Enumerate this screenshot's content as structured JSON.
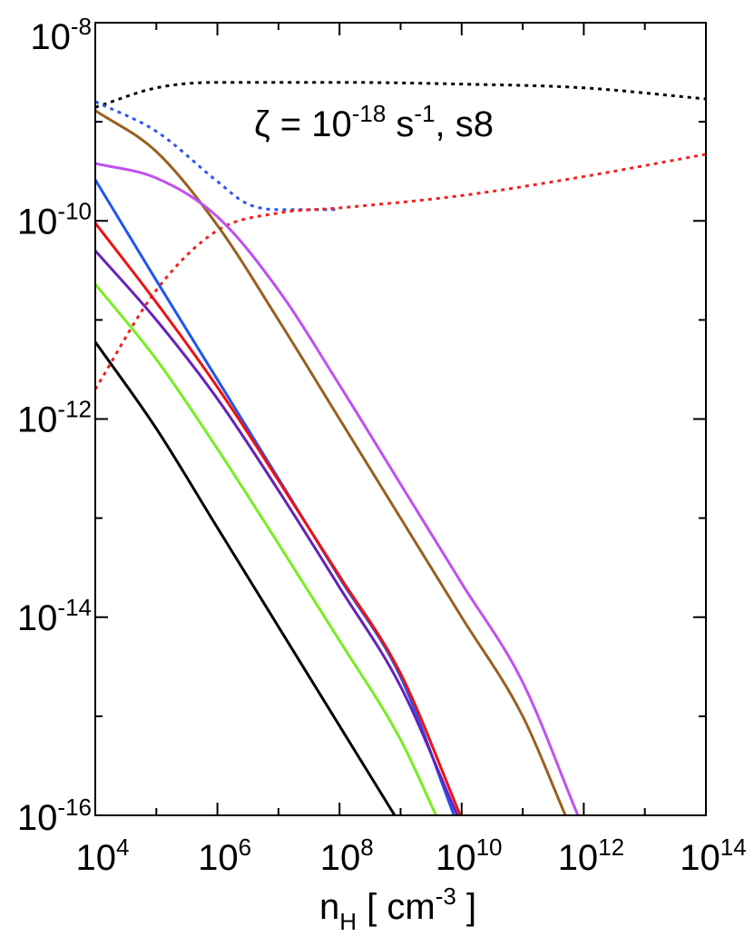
{
  "chart_data": {
    "type": "line",
    "title": "",
    "annotation": {
      "symbol": "ζ = 10",
      "exp": "-18",
      "unit": " s",
      "unit_exp": "-1",
      "suffix": ", s8"
    },
    "xlabel": {
      "main": "n",
      "sub": "H",
      "rest": " [ cm",
      "sup": "-3",
      "end": " ]"
    },
    "ylabel": "",
    "x_scale": "log",
    "y_scale": "log",
    "xlim": [
      10000,
      100000000000000
    ],
    "ylim": [
      1e-16,
      1e-08
    ],
    "grid": false,
    "x_ticks": [
      {
        "value": 4,
        "base": "10",
        "exp": "4"
      },
      {
        "value": 6,
        "base": "10",
        "exp": "6"
      },
      {
        "value": 8,
        "base": "10",
        "exp": "8"
      },
      {
        "value": 10,
        "base": "10",
        "exp": "10"
      },
      {
        "value": 12,
        "base": "10",
        "exp": "12"
      },
      {
        "value": 14,
        "base": "10",
        "exp": "14"
      }
    ],
    "y_ticks": [
      {
        "value": -8,
        "base": "10",
        "exp": "-8"
      },
      {
        "value": -10,
        "base": "10",
        "exp": "-10"
      },
      {
        "value": -12,
        "base": "10",
        "exp": "-12"
      },
      {
        "value": -14,
        "base": "10",
        "exp": "-14"
      },
      {
        "value": -16,
        "base": "10",
        "exp": "-16"
      }
    ],
    "series": [
      {
        "color": "#000000",
        "style": "dotted",
        "points": [
          [
            10000.0,
            1.4e-09
          ],
          [
            100000.0,
            2.2e-09
          ],
          [
            1000000.0,
            2.5e-09
          ],
          [
            100000000.0,
            2.5e-09
          ],
          [
            10000000000.0,
            2.4e-09
          ],
          [
            1000000000000.0,
            2.2e-09
          ],
          [
            100000000000000.0,
            1.7e-09
          ]
        ]
      },
      {
        "color": "#3355ee",
        "style": "dotted",
        "points": [
          [
            10000.0,
            1.6e-09
          ],
          [
            100000.0,
            8e-10
          ],
          [
            1000000.0,
            2.5e-10
          ],
          [
            3000000.0,
            1.5e-10
          ],
          [
            10000000.0,
            1.3e-10
          ],
          [
            100000000.0,
            1.3e-10
          ]
        ]
      },
      {
        "color": "#ee2222",
        "style": "dotted",
        "points": [
          [
            10000.0,
            2e-12
          ],
          [
            100000.0,
            2e-11
          ],
          [
            1000000.0,
            8e-11
          ],
          [
            10000000.0,
            1.2e-10
          ],
          [
            100000000.0,
            1.35e-10
          ],
          [
            10000000000.0,
            1.8e-10
          ],
          [
            1000000000000.0,
            2.8e-10
          ],
          [
            100000000000000.0,
            4.7e-10
          ]
        ]
      },
      {
        "color": "#9a6020",
        "style": "solid",
        "points": [
          [
            10000.0,
            1.3e-09
          ],
          [
            100000.0,
            5e-10
          ],
          [
            1000000.0,
            9e-11
          ],
          [
            10000000.0,
            1e-11
          ],
          [
            100000000.0,
            1e-12
          ],
          [
            1000000000.0,
            1e-13
          ],
          [
            10000000000.0,
            1e-14
          ],
          [
            100000000000.0,
            1e-15
          ],
          [
            500000000000.0,
            1e-16
          ]
        ]
      },
      {
        "color": "#c050f0",
        "style": "solid",
        "points": [
          [
            10000.0,
            3.8e-10
          ],
          [
            100000.0,
            2.7e-10
          ],
          [
            1000000.0,
            1.1e-10
          ],
          [
            10000000.0,
            2e-11
          ],
          [
            100000000.0,
            2.2e-12
          ],
          [
            1000000000.0,
            2.2e-13
          ],
          [
            10000000000.0,
            2.2e-14
          ],
          [
            100000000000.0,
            2.2e-15
          ],
          [
            800000000000.0,
            1e-16
          ]
        ]
      },
      {
        "color": "#2255ee",
        "style": "solid",
        "points": [
          [
            10000.0,
            2.6e-10
          ],
          [
            100000.0,
            2.5e-11
          ],
          [
            1000000.0,
            2.5e-12
          ],
          [
            10000000.0,
            2.5e-13
          ],
          [
            100000000.0,
            2.5e-14
          ],
          [
            1000000000.0,
            2.5e-15
          ],
          [
            7500000000.0,
            1e-16
          ]
        ]
      },
      {
        "color": "#ee1111",
        "style": "solid",
        "points": [
          [
            10000.0,
            9.5e-11
          ],
          [
            100000.0,
            1.5e-11
          ],
          [
            1000000.0,
            2.1e-12
          ],
          [
            10000000.0,
            2.4e-13
          ],
          [
            100000000.0,
            2.6e-14
          ],
          [
            1000000000.0,
            2.7e-15
          ],
          [
            9500000000.0,
            1e-16
          ]
        ]
      },
      {
        "color": "#6622bb",
        "style": "solid",
        "points": [
          [
            10000.0,
            5e-11
          ],
          [
            100000.0,
            1e-11
          ],
          [
            1000000.0,
            1.6e-12
          ],
          [
            10000000.0,
            1.9e-13
          ],
          [
            100000000.0,
            2e-14
          ],
          [
            1000000000.0,
            2e-15
          ],
          [
            8500000000.0,
            1e-16
          ]
        ]
      },
      {
        "color": "#77ee22",
        "style": "solid",
        "points": [
          [
            10000.0,
            2.3e-11
          ],
          [
            100000.0,
            4e-12
          ],
          [
            1000000.0,
            5e-13
          ],
          [
            10000000.0,
            5.5e-14
          ],
          [
            100000000.0,
            5.8e-15
          ],
          [
            1000000000.0,
            5.8e-16
          ],
          [
            3800000000.0,
            1e-16
          ]
        ]
      },
      {
        "color": "#000000",
        "style": "solid",
        "points": [
          [
            10000.0,
            6e-12
          ],
          [
            100000.0,
            8e-13
          ],
          [
            1000000.0,
            8e-14
          ],
          [
            10000000.0,
            8e-15
          ],
          [
            100000000.0,
            8e-16
          ],
          [
            1000000000.0,
            8e-17
          ]
        ]
      }
    ]
  }
}
